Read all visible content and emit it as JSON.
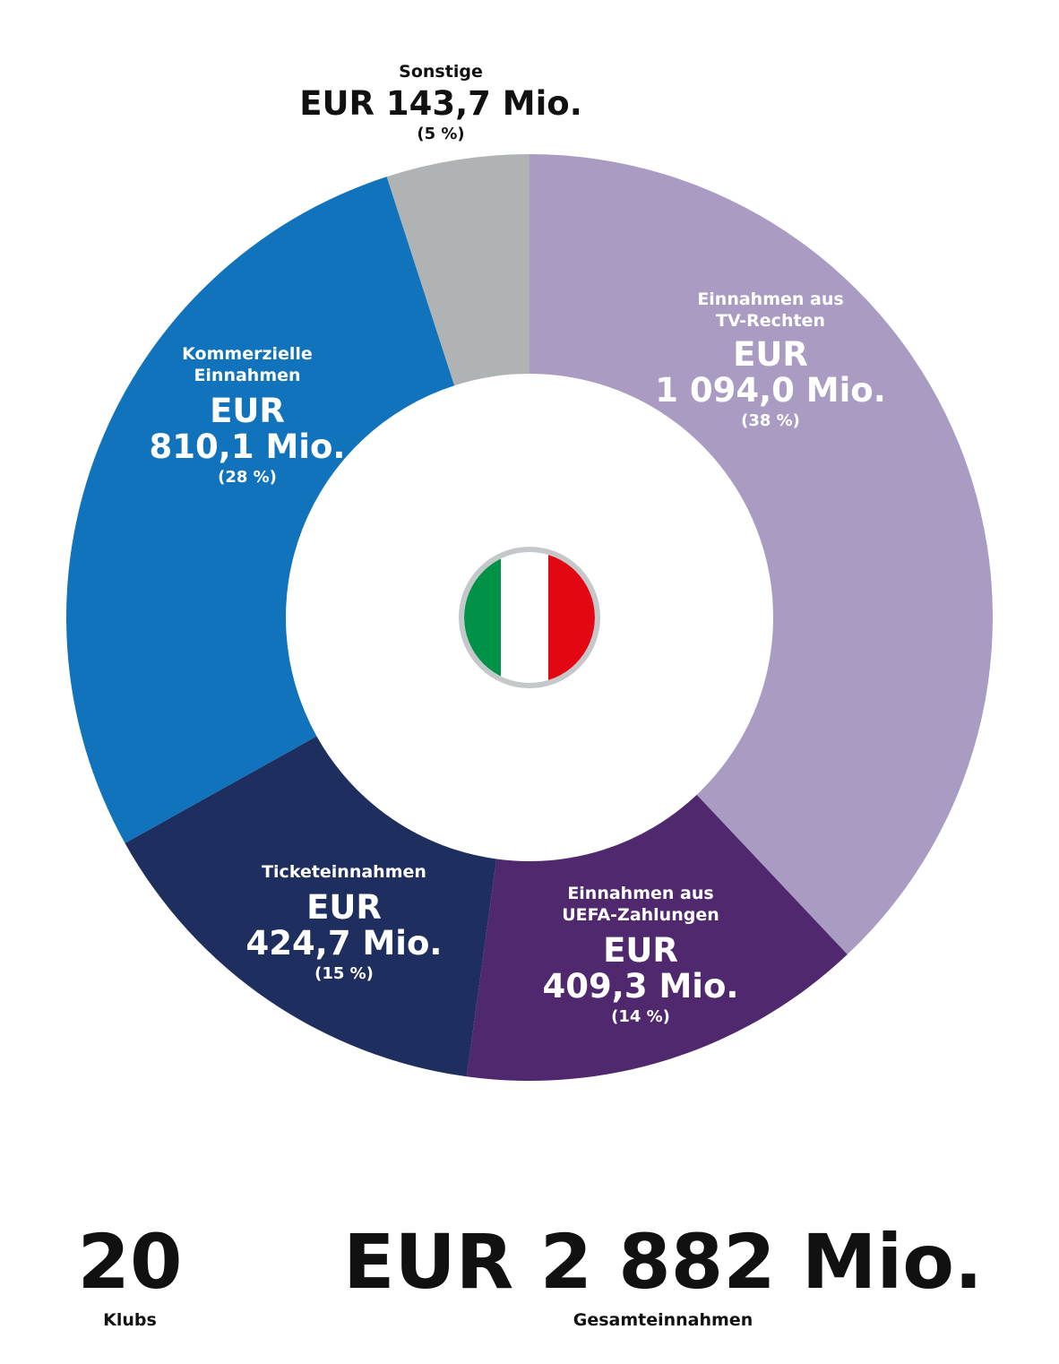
{
  "chart_data": {
    "type": "donut",
    "slices": [
      {
        "name_lines": [
          "Einnahmen aus",
          "TV-Rechten"
        ],
        "amount_lines": [
          "EUR",
          "1 094,0 Mio."
        ],
        "percent_label": "(38 %)",
        "value": 1094.0,
        "color": "#A99BC2"
      },
      {
        "name_lines": [
          "Einnahmen aus",
          "UEFA-Zahlungen"
        ],
        "amount_lines": [
          "EUR",
          "409,3 Mio."
        ],
        "percent_label": "(14 %)",
        "value": 409.3,
        "color": "#50286E"
      },
      {
        "name_lines": [
          "Ticketeinnahmen"
        ],
        "amount_lines": [
          "EUR",
          "424,7 Mio."
        ],
        "percent_label": "(15 %)",
        "value": 424.7,
        "color": "#1E2E5E"
      },
      {
        "name_lines": [
          "Kommerzielle",
          "Einnahmen"
        ],
        "amount_lines": [
          "EUR",
          "810,1 Mio."
        ],
        "percent_label": "(28 %)",
        "value": 810.1,
        "color": "#1173BC"
      },
      {
        "name_lines": [
          "Sonstige"
        ],
        "amount_lines": [
          "EUR 143,7 Mio."
        ],
        "percent_label": "(5 %)",
        "value": 143.7,
        "color": "#B0B3B4"
      }
    ],
    "center_icon": "italy-flag-icon",
    "flag_colors": [
      "#009246",
      "#FFFFFF",
      "#E30613"
    ]
  },
  "stats": {
    "clubs_value": "20",
    "clubs_label": "Klubs",
    "total_value": "EUR 2 882 Mio.",
    "total_label": "Gesamteinnahmen"
  }
}
